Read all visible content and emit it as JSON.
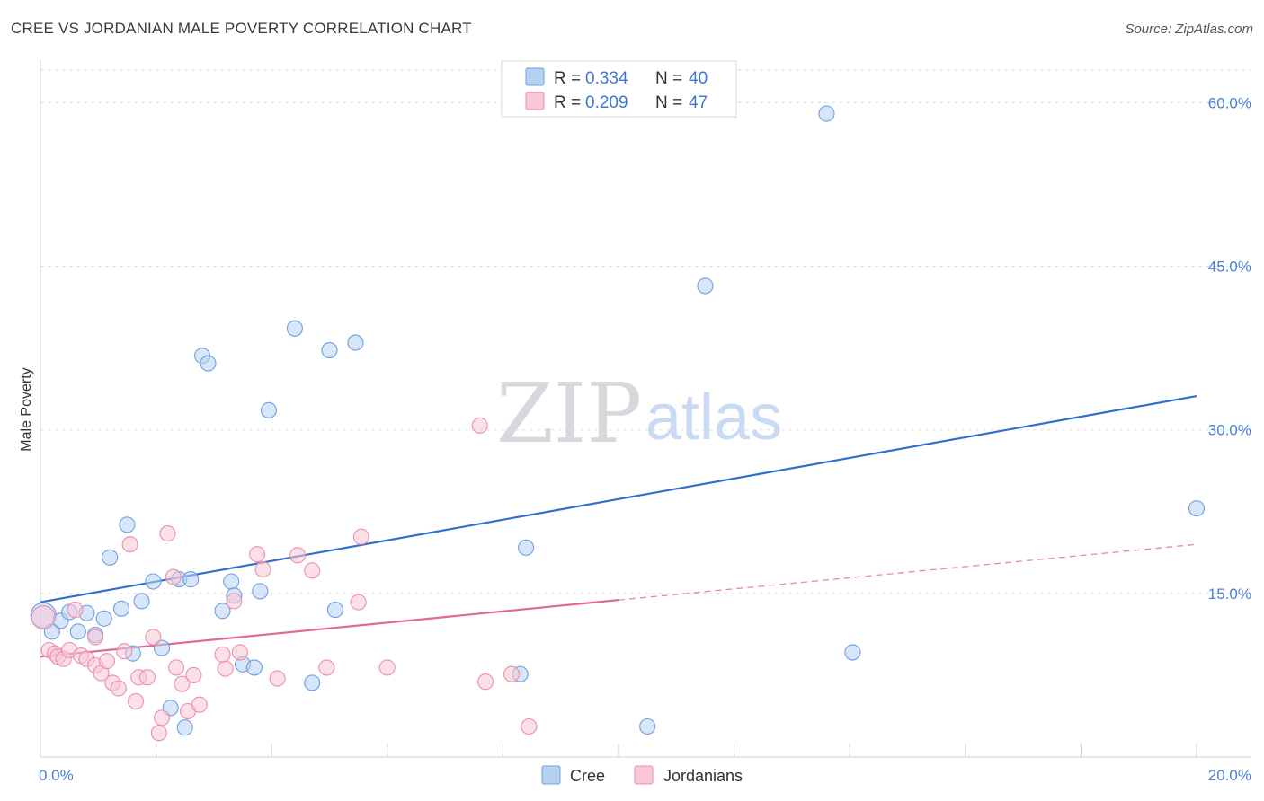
{
  "title": "CREE VS JORDANIAN MALE POVERTY CORRELATION CHART",
  "source": "Source: ZipAtlas.com",
  "watermark": {
    "zip": "ZIP",
    "atlas": "atlas"
  },
  "colors": {
    "cree_fill": "#b7d1f3",
    "cree_stroke": "#6f9fe0",
    "cree_line": "#2f6fce",
    "jord_fill": "#f8c6d5",
    "jord_stroke": "#eb8fac",
    "jord_line": "#e06a93",
    "grid": "#dddddd",
    "tick_text": "#4a7fd0"
  },
  "legend": {
    "rows": [
      {
        "r_label": "R =",
        "r_value": "0.334",
        "n_label": "N =",
        "n_value": "40"
      },
      {
        "r_label": "R =",
        "r_value": "0.209",
        "n_label": "N =",
        "n_value": "47"
      }
    ]
  },
  "chart_data": {
    "type": "scatter",
    "title": "CREE VS JORDANIAN MALE POVERTY CORRELATION CHART",
    "xlabel": "",
    "ylabel": "Male Poverty",
    "xlim": [
      0,
      20
    ],
    "ylim": [
      0,
      63
    ],
    "x_tick_labels": {
      "left": "0.0%",
      "right": "20.0%"
    },
    "y_ticks": [
      {
        "value": 15,
        "label": "15.0%"
      },
      {
        "value": 30,
        "label": "30.0%"
      },
      {
        "value": 45,
        "label": "45.0%"
      },
      {
        "value": 60,
        "label": "60.0%"
      }
    ],
    "x_minor_ticks": [
      2,
      4,
      6,
      8,
      10,
      12,
      14,
      16,
      18,
      20
    ],
    "series": [
      {
        "name": "Cree",
        "points": [
          [
            0.05,
            13.0
          ],
          [
            0.2,
            11.5
          ],
          [
            0.35,
            12.5
          ],
          [
            0.5,
            13.3
          ],
          [
            0.65,
            11.5
          ],
          [
            0.8,
            13.2
          ],
          [
            0.95,
            11.2
          ],
          [
            1.1,
            12.7
          ],
          [
            1.2,
            18.3
          ],
          [
            1.4,
            13.6
          ],
          [
            1.5,
            21.3
          ],
          [
            1.6,
            9.5
          ],
          [
            1.75,
            14.3
          ],
          [
            1.95,
            16.1
          ],
          [
            2.1,
            10.0
          ],
          [
            2.25,
            4.5
          ],
          [
            2.4,
            16.3
          ],
          [
            2.6,
            16.3
          ],
          [
            2.5,
            2.7
          ],
          [
            2.8,
            36.8
          ],
          [
            2.9,
            36.1
          ],
          [
            3.15,
            13.4
          ],
          [
            3.3,
            16.1
          ],
          [
            3.35,
            14.8
          ],
          [
            3.5,
            8.5
          ],
          [
            3.7,
            8.2
          ],
          [
            3.8,
            15.2
          ],
          [
            3.95,
            31.8
          ],
          [
            4.4,
            39.3
          ],
          [
            4.7,
            6.8
          ],
          [
            5.0,
            37.3
          ],
          [
            5.1,
            13.5
          ],
          [
            5.45,
            38.0
          ],
          [
            8.3,
            7.6
          ],
          [
            8.4,
            19.2
          ],
          [
            10.5,
            2.8
          ],
          [
            11.5,
            43.2
          ],
          [
            13.6,
            59.0
          ],
          [
            14.05,
            9.6
          ],
          [
            20.0,
            22.8
          ]
        ],
        "trend": {
          "x": [
            0,
            20
          ],
          "y": [
            14.2,
            33.1
          ]
        }
      },
      {
        "name": "Jordanians",
        "points": [
          [
            0.05,
            12.8
          ],
          [
            0.15,
            9.8
          ],
          [
            0.25,
            9.5
          ],
          [
            0.3,
            9.2
          ],
          [
            0.4,
            9.0
          ],
          [
            0.5,
            9.8
          ],
          [
            0.6,
            13.5
          ],
          [
            0.7,
            9.3
          ],
          [
            0.8,
            9.0
          ],
          [
            0.95,
            11.0
          ],
          [
            0.95,
            8.4
          ],
          [
            1.05,
            7.7
          ],
          [
            1.15,
            8.8
          ],
          [
            1.25,
            6.8
          ],
          [
            1.35,
            6.3
          ],
          [
            1.45,
            9.7
          ],
          [
            1.55,
            19.5
          ],
          [
            1.65,
            5.1
          ],
          [
            1.7,
            7.3
          ],
          [
            1.85,
            7.3
          ],
          [
            1.95,
            11.0
          ],
          [
            2.05,
            2.2
          ],
          [
            2.1,
            3.6
          ],
          [
            2.2,
            20.5
          ],
          [
            2.3,
            16.5
          ],
          [
            2.35,
            8.2
          ],
          [
            2.45,
            6.7
          ],
          [
            2.55,
            4.2
          ],
          [
            2.65,
            7.5
          ],
          [
            2.75,
            4.8
          ],
          [
            3.15,
            9.4
          ],
          [
            3.2,
            8.1
          ],
          [
            3.35,
            14.3
          ],
          [
            3.45,
            9.6
          ],
          [
            3.75,
            18.6
          ],
          [
            3.85,
            17.2
          ],
          [
            4.1,
            7.2
          ],
          [
            4.45,
            18.5
          ],
          [
            4.7,
            17.1
          ],
          [
            4.95,
            8.2
          ],
          [
            5.5,
            14.2
          ],
          [
            5.55,
            20.2
          ],
          [
            6.0,
            8.2
          ],
          [
            7.6,
            30.4
          ],
          [
            7.7,
            6.9
          ],
          [
            8.15,
            7.6
          ],
          [
            8.45,
            2.8
          ]
        ],
        "trend": {
          "x": [
            0,
            10.0
          ],
          "y": [
            9.2,
            14.4
          ]
        },
        "trend_dashed": {
          "x": [
            10.0,
            20
          ],
          "y": [
            14.4,
            19.5
          ]
        }
      }
    ],
    "legend_position": "bottom-center"
  }
}
